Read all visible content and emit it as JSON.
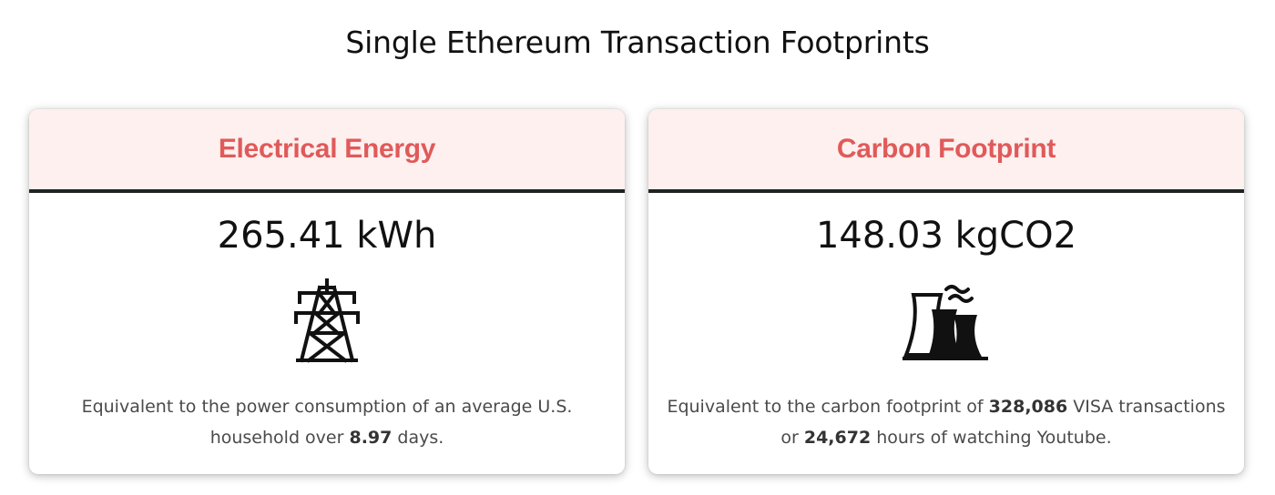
{
  "page": {
    "title": "Single Ethereum Transaction Footprints"
  },
  "cards": [
    {
      "title": "Electrical Energy",
      "value": "265.41 kWh",
      "icon": "power-tower-icon",
      "desc": {
        "part1": "Equivalent to the power consumption of an average U.S. household over ",
        "num1": "8.97",
        "part2": " days."
      }
    },
    {
      "title": "Carbon Footprint",
      "value": "148.03 kgCO2",
      "icon": "factory-cooling-towers-icon",
      "desc": {
        "part1": "Equivalent to the carbon footprint of ",
        "num1": "328,086",
        "part2": " VISA transactions or ",
        "num2": "24,672",
        "part3": " hours of watching Youtube."
      }
    }
  ],
  "colors": {
    "accent": "#e05a5a",
    "header_bg": "#fdf0ef",
    "divider": "#222222"
  }
}
